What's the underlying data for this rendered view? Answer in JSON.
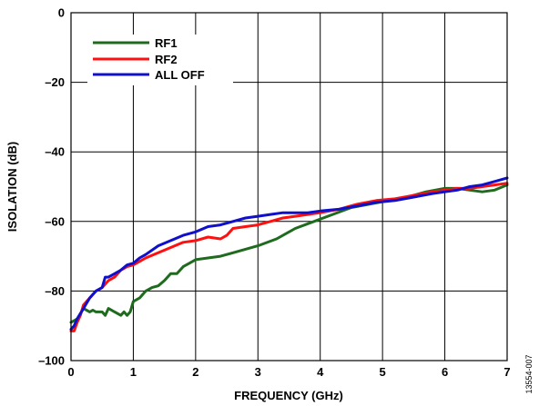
{
  "chart_data": {
    "type": "line",
    "title": "",
    "xlabel": "FREQUENCY (GHz)",
    "ylabel": "ISOLATION (dB)",
    "xlim": [
      0,
      7
    ],
    "ylim": [
      -100,
      0
    ],
    "xticks": [
      0,
      1,
      2,
      3,
      4,
      5,
      6,
      7
    ],
    "yticks": [
      0,
      -20,
      -40,
      -60,
      -80,
      -100
    ],
    "xtick_labels": [
      "0",
      "1",
      "2",
      "3",
      "4",
      "5",
      "6",
      "7"
    ],
    "ytick_labels": [
      "0",
      "–20",
      "–40",
      "–60",
      "–80",
      "–100"
    ],
    "grid": true,
    "legend_position": "top-left",
    "figure_id": "13554-007",
    "series": [
      {
        "name": "RF1",
        "color": "#1e6b1e",
        "x": [
          0,
          0.05,
          0.1,
          0.2,
          0.3,
          0.35,
          0.4,
          0.5,
          0.55,
          0.6,
          0.7,
          0.8,
          0.85,
          0.9,
          0.95,
          1.0,
          1.1,
          1.2,
          1.3,
          1.4,
          1.5,
          1.6,
          1.7,
          1.8,
          1.9,
          2.0,
          2.2,
          2.4,
          2.6,
          2.8,
          3.0,
          3.3,
          3.6,
          3.9,
          4.2,
          4.5,
          4.8,
          5.1,
          5.4,
          5.7,
          6.0,
          6.2,
          6.4,
          6.6,
          6.8,
          7.0
        ],
        "y": [
          -89,
          -88.5,
          -88,
          -85,
          -86,
          -85.5,
          -86,
          -86,
          -87,
          -85,
          -86,
          -87,
          -86,
          -87,
          -86,
          -83,
          -82,
          -80,
          -79,
          -78.5,
          -77,
          -75,
          -75,
          -73,
          -72,
          -71,
          -70.5,
          -70,
          -69,
          -68,
          -67,
          -65,
          -62,
          -60,
          -58,
          -56,
          -55,
          -54,
          -53,
          -51.5,
          -50.5,
          -50.5,
          -51,
          -51.5,
          -51,
          -49.5
        ]
      },
      {
        "name": "RF2",
        "color": "#ff1010",
        "x": [
          0,
          0.05,
          0.1,
          0.15,
          0.2,
          0.3,
          0.4,
          0.5,
          0.6,
          0.7,
          0.8,
          0.9,
          1.0,
          1.1,
          1.2,
          1.4,
          1.6,
          1.8,
          2.0,
          2.2,
          2.4,
          2.5,
          2.6,
          2.8,
          3.0,
          3.2,
          3.4,
          3.6,
          3.8,
          4.0,
          4.3,
          4.6,
          4.9,
          5.2,
          5.5,
          5.8,
          6.0,
          6.2,
          6.4,
          6.6,
          6.8,
          7.0
        ],
        "y": [
          -91.5,
          -91.5,
          -89,
          -87,
          -84,
          -82,
          -80,
          -79,
          -77,
          -76,
          -74,
          -73,
          -72.5,
          -71.5,
          -70.5,
          -69,
          -67.5,
          -66,
          -65.5,
          -64.5,
          -65,
          -64,
          -62,
          -61.5,
          -61,
          -60,
          -59,
          -58.5,
          -58,
          -57.5,
          -56.5,
          -55,
          -54,
          -53.5,
          -52.5,
          -51.5,
          -51,
          -50.5,
          -50.5,
          -50,
          -49.5,
          -49
        ]
      },
      {
        "name": "ALL OFF",
        "color": "#1010cc",
        "x": [
          0,
          0.05,
          0.1,
          0.2,
          0.3,
          0.4,
          0.5,
          0.55,
          0.6,
          0.7,
          0.8,
          0.9,
          1.0,
          1.1,
          1.2,
          1.4,
          1.6,
          1.8,
          2.0,
          2.2,
          2.4,
          2.6,
          2.8,
          3.0,
          3.2,
          3.4,
          3.6,
          3.8,
          4.0,
          4.3,
          4.6,
          4.9,
          5.2,
          5.5,
          5.8,
          6.0,
          6.2,
          6.4,
          6.6,
          6.8,
          7.0
        ],
        "y": [
          -91,
          -90,
          -88,
          -85,
          -82,
          -80,
          -79,
          -76,
          -76,
          -75,
          -74,
          -72.5,
          -72,
          -70.5,
          -69.5,
          -67,
          -65.5,
          -64,
          -63,
          -61.5,
          -61,
          -60,
          -59,
          -58.5,
          -58,
          -57.5,
          -57.5,
          -57.5,
          -57,
          -56.5,
          -55.5,
          -54.5,
          -54,
          -53,
          -52,
          -51.5,
          -51,
          -50,
          -49.5,
          -48.5,
          -47.5
        ]
      }
    ]
  }
}
